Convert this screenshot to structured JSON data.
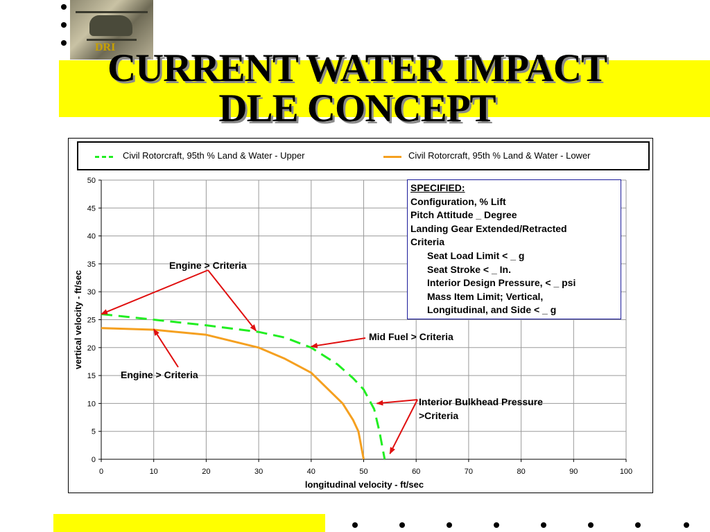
{
  "slide": {
    "logo_text": "DRI",
    "title_line1": "CURRENT WATER IMPACT",
    "title_line2": "DLE CONCEPT"
  },
  "chart_data": {
    "type": "line",
    "xlabel": "longitudinal velocity - ft/sec",
    "ylabel": "vertical velocity - ft/sec",
    "xlim": [
      0,
      100
    ],
    "ylim": [
      0,
      50
    ],
    "x_ticks": [
      0,
      10,
      20,
      30,
      40,
      50,
      60,
      70,
      80,
      90,
      100
    ],
    "y_ticks": [
      0,
      5,
      10,
      15,
      20,
      25,
      30,
      35,
      40,
      45,
      50
    ],
    "grid": true,
    "legend": "top",
    "series": [
      {
        "name": "Civil Rotorcraft, 95th % Land & Water - Upper",
        "color": "#22ee22",
        "style": "dashed",
        "points": [
          [
            0,
            26
          ],
          [
            10,
            25
          ],
          [
            20,
            24
          ],
          [
            30,
            22.8
          ],
          [
            35,
            21.8
          ],
          [
            40,
            20
          ],
          [
            45,
            17
          ],
          [
            48,
            14.5
          ],
          [
            50,
            12.5
          ],
          [
            52,
            9
          ],
          [
            53,
            5
          ],
          [
            54,
            0
          ]
        ]
      },
      {
        "name": "Civil Rotorcraft, 95th % Land & Water - Lower",
        "color": "#f5a020",
        "style": "solid",
        "points": [
          [
            0,
            23.5
          ],
          [
            10,
            23.2
          ],
          [
            20,
            22.3
          ],
          [
            30,
            20
          ],
          [
            35,
            18
          ],
          [
            40,
            15.5
          ],
          [
            42.5,
            13.2
          ],
          [
            46,
            10
          ],
          [
            48,
            7
          ],
          [
            49,
            5
          ],
          [
            50,
            0
          ]
        ]
      }
    ],
    "annotations": [
      {
        "text": "Engine > Criteria",
        "arrows_to": [
          [
            0,
            26
          ],
          [
            29.5,
            23
          ]
        ]
      },
      {
        "text": "Engine > Criteria",
        "arrows_to": [
          [
            10,
            23.3
          ]
        ]
      },
      {
        "text": "Mid Fuel > Criteria",
        "arrows_to": [
          [
            40,
            20.2
          ]
        ]
      },
      {
        "text": "Interior Bulkhead Pressure",
        "text2": ">Criteria",
        "arrows_to": [
          [
            52.5,
            10
          ],
          [
            55,
            1
          ]
        ]
      }
    ],
    "specified_box": {
      "header": "SPECIFIED:",
      "lines": [
        "Configuration, % Lift",
        "Pitch Attitude _ Degree",
        "Landing Gear Extended/Retracted",
        "Criteria"
      ],
      "indented_lines": [
        "Seat Load Limit < _ g",
        "Seat Stroke <  _ In.",
        "Interior Design Pressure, < _ psi",
        "Mass Item Limit; Vertical,",
        "Longitudinal, and Side < _ g"
      ]
    }
  }
}
